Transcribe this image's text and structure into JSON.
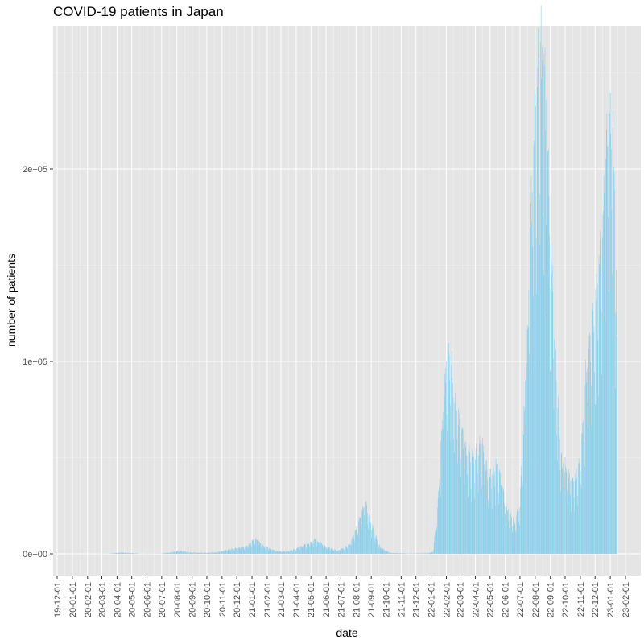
{
  "chart_data": {
    "type": "bar",
    "title": "COVID-19 patients in Japan",
    "xlabel": "date",
    "ylabel": "number of patients",
    "ylim": [
      0,
      260000
    ],
    "y_ticks": [
      {
        "value": 0,
        "label": "0e+00"
      },
      {
        "value": 100000,
        "label": "1e+05"
      },
      {
        "value": 200000,
        "label": "2e+05"
      }
    ],
    "x_tick_labels": [
      "19-12-01",
      "20-01-01",
      "20-02-01",
      "20-03-01",
      "20-04-01",
      "20-05-01",
      "20-06-01",
      "20-07-01",
      "20-08-01",
      "20-09-01",
      "20-10-01",
      "20-11-01",
      "20-12-01",
      "21-01-01",
      "21-02-01",
      "21-03-01",
      "21-04-01",
      "21-05-01",
      "21-06-01",
      "21-07-01",
      "21-08-01",
      "21-09-01",
      "21-10-01",
      "21-11-01",
      "21-12-01",
      "22-01-01",
      "22-02-01",
      "22-03-01",
      "22-04-01",
      "22-05-01",
      "22-06-01",
      "22-07-01",
      "22-08-01",
      "22-09-01",
      "22-10-01",
      "22-11-01",
      "22-12-01",
      "23-01-01",
      "23-02-01"
    ],
    "bar_color": "#87CEEB",
    "panel_color": "#E5E5E5",
    "grid": true,
    "daily_profile": [
      [
        "2020-01-16",
        0
      ],
      [
        "2020-03-15",
        50
      ],
      [
        "2020-04-11",
        700
      ],
      [
        "2020-04-20",
        500
      ],
      [
        "2020-05-20",
        50
      ],
      [
        "2020-06-30",
        100
      ],
      [
        "2020-07-20",
        700
      ],
      [
        "2020-08-07",
        1600
      ],
      [
        "2020-08-25",
        800
      ],
      [
        "2020-09-20",
        500
      ],
      [
        "2020-10-20",
        700
      ],
      [
        "2020-11-20",
        2500
      ],
      [
        "2020-12-20",
        3500
      ],
      [
        "2021-01-08",
        7800
      ],
      [
        "2021-01-25",
        4000
      ],
      [
        "2021-02-20",
        1300
      ],
      [
        "2021-03-15",
        1200
      ],
      [
        "2021-04-10",
        3500
      ],
      [
        "2021-05-10",
        7000
      ],
      [
        "2021-06-01",
        3500
      ],
      [
        "2021-06-25",
        1500
      ],
      [
        "2021-07-20",
        5000
      ],
      [
        "2021-08-05",
        15000
      ],
      [
        "2021-08-20",
        25000
      ],
      [
        "2021-09-05",
        12000
      ],
      [
        "2021-09-20",
        3000
      ],
      [
        "2021-10-10",
        500
      ],
      [
        "2021-11-15",
        150
      ],
      [
        "2021-12-25",
        300
      ],
      [
        "2022-01-05",
        1000
      ],
      [
        "2022-01-15",
        25000
      ],
      [
        "2022-01-25",
        75000
      ],
      [
        "2022-02-05",
        100000
      ],
      [
        "2022-02-20",
        75000
      ],
      [
        "2022-03-10",
        55000
      ],
      [
        "2022-03-25",
        45000
      ],
      [
        "2022-04-12",
        55000
      ],
      [
        "2022-04-28",
        38000
      ],
      [
        "2022-05-15",
        45000
      ],
      [
        "2022-06-01",
        25000
      ],
      [
        "2022-06-20",
        15000
      ],
      [
        "2022-07-01",
        25000
      ],
      [
        "2022-07-15",
        100000
      ],
      [
        "2022-07-28",
        200000
      ],
      [
        "2022-08-10",
        250000
      ],
      [
        "2022-08-20",
        235000
      ],
      [
        "2022-09-01",
        160000
      ],
      [
        "2022-09-15",
        80000
      ],
      [
        "2022-09-25",
        45000
      ],
      [
        "2022-10-15",
        35000
      ],
      [
        "2022-11-01",
        45000
      ],
      [
        "2022-11-15",
        95000
      ],
      [
        "2022-12-01",
        120000
      ],
      [
        "2022-12-15",
        160000
      ],
      [
        "2022-12-28",
        210000
      ],
      [
        "2023-01-06",
        225000
      ],
      [
        "2023-01-12",
        150000
      ],
      [
        "2023-01-15",
        100000
      ]
    ]
  }
}
